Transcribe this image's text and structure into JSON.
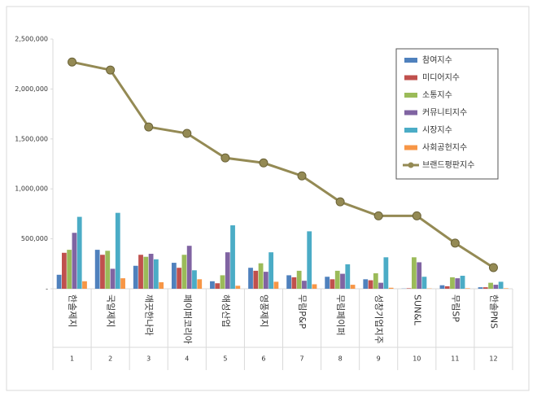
{
  "chart_data": {
    "type": "bar",
    "categories": [
      "한솔제지",
      "국일제지",
      "깨끗한나라",
      "페이퍼코리아",
      "해성산업",
      "영풍제지",
      "무림P&P",
      "무림페이퍼",
      "성창기업지주",
      "SUN&L",
      "무림SP",
      "한솔PNS"
    ],
    "ranks": [
      "1",
      "2",
      "3",
      "4",
      "5",
      "6",
      "7",
      "8",
      "9",
      "10",
      "11",
      "12"
    ],
    "series": [
      {
        "name": "참여지수",
        "color": "#4f81bd",
        "values": [
          140000,
          390000,
          230000,
          260000,
          75000,
          210000,
          135000,
          120000,
          95000,
          2000,
          35000,
          15000
        ]
      },
      {
        "name": "미디어지수",
        "color": "#c0504d",
        "values": [
          360000,
          340000,
          340000,
          210000,
          55000,
          180000,
          115000,
          95000,
          85000,
          5000,
          25000,
          15000
        ]
      },
      {
        "name": "소통지수",
        "color": "#9bbb59",
        "values": [
          390000,
          380000,
          320000,
          340000,
          135000,
          255000,
          180000,
          180000,
          155000,
          315000,
          115000,
          60000
        ]
      },
      {
        "name": "커뮤니티지수",
        "color": "#8064a2",
        "values": [
          560000,
          200000,
          350000,
          430000,
          365000,
          170000,
          80000,
          150000,
          60000,
          265000,
          105000,
          40000
        ]
      },
      {
        "name": "시장지수",
        "color": "#4bacc6",
        "values": [
          720000,
          760000,
          295000,
          185000,
          635000,
          365000,
          575000,
          245000,
          315000,
          120000,
          130000,
          70000
        ]
      },
      {
        "name": "사회공헌지수",
        "color": "#f79646",
        "values": [
          75000,
          105000,
          65000,
          95000,
          30000,
          70000,
          45000,
          40000,
          10000,
          3000,
          5000,
          5000
        ]
      },
      {
        "name": "브랜드평판지수",
        "color": "#948a54",
        "type": "line",
        "values": [
          2270000,
          2190000,
          1620000,
          1555000,
          1310000,
          1260000,
          1130000,
          870000,
          730000,
          730000,
          457000,
          212000
        ]
      }
    ],
    "ylim": [
      0,
      2500000
    ],
    "yticks": [
      {
        "value": 0,
        "label": "-"
      },
      {
        "value": 500000,
        "label": "500,000"
      },
      {
        "value": 1000000,
        "label": "1,000,000"
      },
      {
        "value": 1500000,
        "label": "1,500,000"
      },
      {
        "value": 2000000,
        "label": "2,000,000"
      },
      {
        "value": 2500000,
        "label": "2,500,000"
      }
    ],
    "grid": false,
    "legend": "top-right"
  }
}
